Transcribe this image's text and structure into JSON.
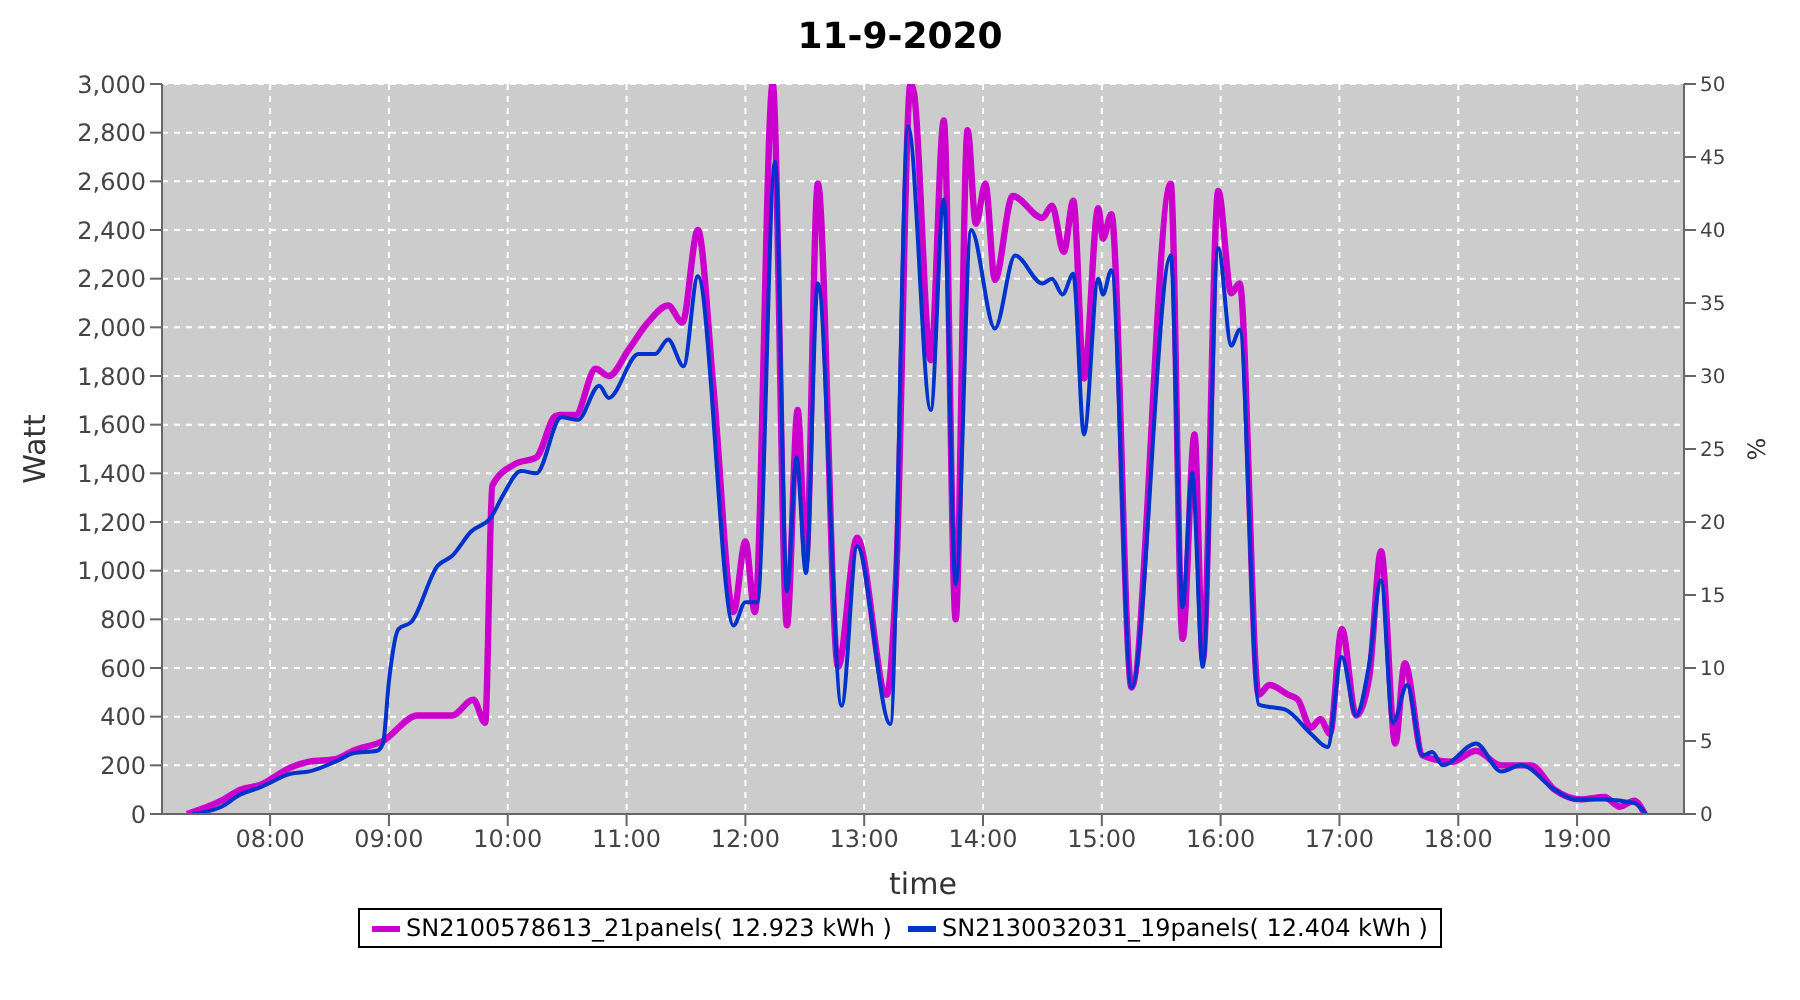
{
  "chart_data": {
    "type": "line",
    "title": "11-9-2020",
    "xlabel": "time",
    "ylabel": "Watt",
    "y2label": "%",
    "xlim": [
      7.09,
      19.9
    ],
    "xticks": [
      {
        "value": 8,
        "label": "08:00"
      },
      {
        "value": 9,
        "label": "09:00"
      },
      {
        "value": 10,
        "label": "10:00"
      },
      {
        "value": 11,
        "label": "11:00"
      },
      {
        "value": 12,
        "label": "12:00"
      },
      {
        "value": 13,
        "label": "13:00"
      },
      {
        "value": 14,
        "label": "14:00"
      },
      {
        "value": 15,
        "label": "15:00"
      },
      {
        "value": 16,
        "label": "16:00"
      },
      {
        "value": 17,
        "label": "17:00"
      },
      {
        "value": 18,
        "label": "18:00"
      },
      {
        "value": 19,
        "label": "19:00"
      }
    ],
    "ylim": [
      0,
      3000
    ],
    "yticks": [
      0,
      200,
      400,
      600,
      800,
      {
        "value": 1000,
        "label": "1,000"
      },
      {
        "value": 1200,
        "label": "1,200"
      },
      {
        "value": 1400,
        "label": "1,400"
      },
      {
        "value": 1600,
        "label": "1,600"
      },
      {
        "value": 1800,
        "label": "1,800"
      },
      {
        "value": 2000,
        "label": "2,000"
      },
      {
        "value": 2200,
        "label": "2,200"
      },
      {
        "value": 2400,
        "label": "2,400"
      },
      {
        "value": 2600,
        "label": "2,600"
      },
      {
        "value": 2800,
        "label": "2,800"
      },
      {
        "value": 3000,
        "label": "3,000"
      }
    ],
    "y2lim": [
      0,
      50
    ],
    "y2ticks": [
      0,
      5,
      10,
      15,
      20,
      25,
      30,
      35,
      40,
      45,
      50
    ],
    "grid": true,
    "legend": "bottom",
    "series": [
      {
        "name": "SN2100578613_21panels( 12.923 kWh )",
        "color": "#cc00cc",
        "x": [
          7.3,
          7.59,
          7.75,
          7.92,
          8.17,
          8.33,
          8.55,
          8.7,
          8.95,
          9.24,
          9.53,
          9.71,
          9.81,
          9.87,
          10.07,
          10.24,
          10.4,
          10.44,
          10.57,
          10.74,
          10.85,
          11.02,
          11.18,
          11.35,
          11.47,
          11.6,
          11.73,
          11.9,
          12.0,
          12.08,
          12.23,
          12.35,
          12.44,
          12.51,
          12.61,
          12.78,
          12.94,
          13.19,
          13.27,
          13.39,
          13.42,
          13.56,
          13.67,
          13.77,
          13.87,
          13.94,
          14.02,
          14.1,
          14.25,
          14.5,
          14.58,
          14.68,
          14.76,
          14.85,
          14.97,
          15.01,
          15.08,
          15.25,
          15.58,
          15.68,
          15.78,
          15.85,
          15.98,
          16.09,
          16.16,
          16.32,
          16.41,
          16.57,
          16.65,
          16.76,
          16.84,
          16.92,
          17.02,
          17.14,
          17.25,
          17.35,
          17.47,
          17.55,
          17.7,
          17.95,
          18.15,
          18.36,
          18.61,
          18.81,
          19.03,
          19.23,
          19.36,
          19.48,
          19.57
        ],
        "values": [
          0,
          55,
          100,
          120,
          190,
          215,
          225,
          260,
          300,
          405,
          405,
          470,
          375,
          1350,
          1440,
          1465,
          1635,
          1640,
          1640,
          1830,
          1800,
          1910,
          2020,
          2090,
          2020,
          2400,
          1760,
          830,
          1120,
          830,
          3000,
          775,
          1660,
          1040,
          2590,
          605,
          1135,
          490,
          990,
          3000,
          2960,
          1865,
          2850,
          800,
          2810,
          2425,
          2590,
          2195,
          2540,
          2450,
          2500,
          2310,
          2520,
          1790,
          2490,
          2365,
          2465,
          520,
          2590,
          720,
          1560,
          635,
          2560,
          2140,
          2180,
          490,
          530,
          490,
          470,
          355,
          390,
          330,
          760,
          405,
          560,
          1080,
          290,
          620,
          240,
          215,
          260,
          200,
          200,
          100,
          60,
          70,
          30,
          55,
          0
        ]
      },
      {
        "name": "SN2130032031_19panels( 12.404 kWh )",
        "color": "#0033cc",
        "x": [
          7.35,
          7.59,
          7.75,
          7.92,
          8.17,
          8.33,
          8.55,
          8.7,
          8.9,
          8.95,
          9.0,
          9.08,
          9.19,
          9.41,
          9.53,
          9.69,
          9.86,
          9.96,
          10.11,
          10.24,
          10.45,
          10.59,
          10.77,
          10.85,
          11.1,
          11.24,
          11.35,
          11.48,
          11.6,
          11.9,
          12.0,
          12.1,
          12.25,
          12.35,
          12.43,
          12.51,
          12.61,
          12.81,
          12.94,
          13.22,
          13.37,
          13.56,
          13.67,
          13.77,
          13.9,
          14.1,
          14.27,
          14.5,
          14.58,
          14.67,
          14.76,
          14.85,
          14.97,
          15.01,
          15.08,
          15.25,
          15.58,
          15.68,
          15.76,
          15.85,
          15.98,
          16.09,
          16.16,
          16.32,
          16.41,
          16.54,
          16.76,
          16.9,
          17.02,
          17.14,
          17.25,
          17.35,
          17.45,
          17.57,
          17.7,
          17.78,
          17.87,
          18.15,
          18.36,
          18.53,
          18.81,
          18.98,
          19.23,
          19.48,
          19.58
        ],
        "values": [
          0,
          30,
          80,
          110,
          165,
          175,
          215,
          250,
          260,
          290,
          545,
          760,
          790,
          1020,
          1060,
          1160,
          1220,
          1310,
          1410,
          1400,
          1630,
          1620,
          1760,
          1710,
          1890,
          1890,
          1950,
          1840,
          2210,
          775,
          870,
          870,
          2680,
          915,
          1465,
          990,
          2180,
          445,
          1100,
          370,
          2825,
          1660,
          2525,
          945,
          2400,
          1995,
          2295,
          2180,
          2200,
          2135,
          2220,
          1560,
          2200,
          2135,
          2235,
          520,
          2295,
          850,
          1400,
          605,
          2325,
          1925,
          1990,
          450,
          440,
          430,
          330,
          275,
          645,
          405,
          615,
          960,
          375,
          530,
          240,
          255,
          200,
          290,
          175,
          200,
          100,
          60,
          60,
          45,
          0
        ]
      }
    ]
  }
}
